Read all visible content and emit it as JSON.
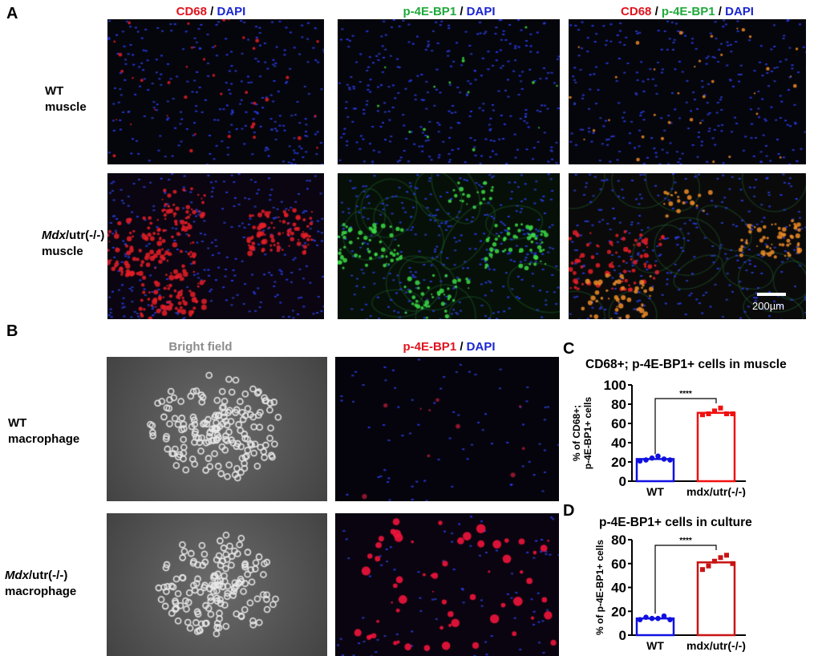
{
  "panel_a": {
    "letter": "A",
    "headers": [
      {
        "parts": [
          {
            "text": "CD68",
            "color": "red"
          },
          {
            "text": " / ",
            "color": "blk"
          },
          {
            "text": "DAPI",
            "color": "blue"
          }
        ]
      },
      {
        "parts": [
          {
            "text": "p-4E-BP1",
            "color": "green"
          },
          {
            "text": " / ",
            "color": "blk"
          },
          {
            "text": "DAPI",
            "color": "blue"
          }
        ]
      },
      {
        "parts": [
          {
            "text": "CD68",
            "color": "red"
          },
          {
            "text": " / ",
            "color": "blk"
          },
          {
            "text": "p-4E-BP1",
            "color": "green"
          },
          {
            "text": " / ",
            "color": "blk"
          },
          {
            "text": "DAPI",
            "color": "blue"
          }
        ]
      }
    ],
    "rows": [
      {
        "label_italic": "",
        "label_line1": "WT",
        "label_line2": "muscle"
      },
      {
        "label_italic": "Mdx",
        "label_line1": "/utr(-/-)",
        "label_line2": "muscle"
      }
    ],
    "scale_bar": "200µm"
  },
  "panel_b": {
    "letter": "B",
    "headers": [
      {
        "parts": [
          {
            "text": "Bright field",
            "color": "gray"
          }
        ]
      },
      {
        "parts": [
          {
            "text": "p-4E-BP1",
            "color": "red"
          },
          {
            "text": " / ",
            "color": "blk"
          },
          {
            "text": "DAPI",
            "color": "blue"
          }
        ]
      }
    ],
    "rows": [
      {
        "label_italic": "",
        "label_line1": "WT",
        "label_line2": "macrophage"
      },
      {
        "label_italic": "Mdx",
        "label_line1": "/utr(-/-)",
        "label_line2": "macrophage"
      }
    ]
  },
  "chart_data": [
    {
      "letter": "C",
      "type": "bar",
      "title": "CD68+; p-4E-BP1+ cells in muscle",
      "ylabel_lines": [
        "% of CD68+;",
        "p-4E-BP1+ cells"
      ],
      "categories": [
        "WT",
        "mdx/utr(-/-)"
      ],
      "values": [
        23,
        71
      ],
      "points": [
        [
          21,
          22,
          24,
          26,
          23,
          22
        ],
        [
          69,
          70,
          73,
          76,
          70,
          70
        ]
      ],
      "bar_colors": [
        "#1010e0",
        "#f01010"
      ],
      "ylim": [
        0,
        100
      ],
      "yticks": [
        0,
        20,
        40,
        60,
        80,
        100
      ],
      "significance": "****"
    },
    {
      "letter": "D",
      "type": "bar",
      "title": "p-4E-BP1+ cells in culture",
      "ylabel_lines": [
        "% of p-4E-BP1+ cells"
      ],
      "categories": [
        "WT",
        "mdx/utr(-/-)"
      ],
      "values": [
        14,
        61
      ],
      "points": [
        [
          13,
          15,
          14,
          14,
          16,
          13
        ],
        [
          55,
          58,
          62,
          65,
          67,
          60
        ]
      ],
      "bar_colors": [
        "#1010e0",
        "#c81414"
      ],
      "ylim": [
        0,
        80
      ],
      "yticks": [
        0,
        20,
        40,
        60,
        80
      ],
      "significance": "****"
    }
  ]
}
